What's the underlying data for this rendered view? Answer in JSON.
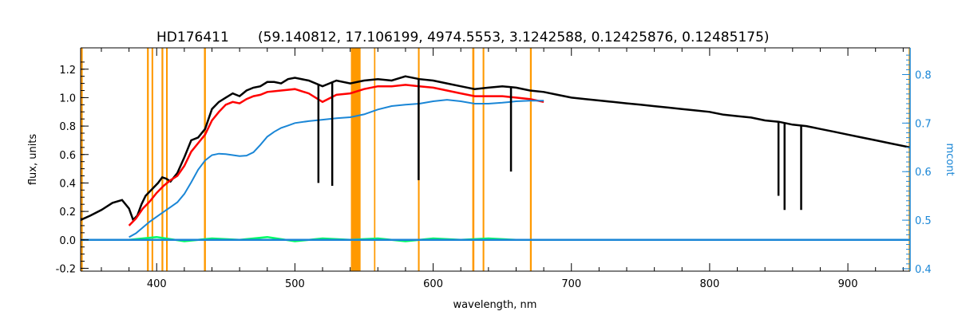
{
  "chart_data": {
    "type": "line",
    "title": "HD176411",
    "subtitle": "(59.140812, 17.106199, 4974.5553, 3.1242588, 0.12425876, 0.12485175)",
    "xlabel": "wavelength, nm",
    "ylabel": "flux, units",
    "ylabel_right": "mcont",
    "xlim": [
      345,
      945
    ],
    "ylim": [
      -0.22,
      1.35
    ],
    "ylim_right": [
      0.395,
      0.855
    ],
    "x_ticks": [
      400,
      500,
      600,
      700,
      800,
      900
    ],
    "x_tick_labels": [
      "400",
      "500",
      "600",
      "700",
      "800",
      "900"
    ],
    "y_ticks": [
      -0.2,
      0.0,
      0.2,
      0.4,
      0.6,
      0.8,
      1.0,
      1.2
    ],
    "y_tick_labels": [
      "-0.2",
      "0.0",
      "0.2",
      "0.4",
      "0.6",
      "0.8",
      "1.0",
      "1.2"
    ],
    "y_right_ticks": [
      0.4,
      0.5,
      0.6,
      0.7,
      0.8
    ],
    "y_right_tick_labels": [
      "0.4",
      "0.5",
      "0.6",
      "0.7",
      "0.8"
    ],
    "masked_regions": [
      [
        345,
        346.5
      ],
      [
        393,
        394.3
      ],
      [
        396.3,
        397.5
      ],
      [
        403.5,
        404.8
      ],
      [
        406.8,
        408
      ],
      [
        434.2,
        435.6
      ],
      [
        540.5,
        547.5
      ],
      [
        557.2,
        558.2
      ],
      [
        589,
        590.2
      ],
      [
        628.3,
        629.8
      ],
      [
        635.8,
        637
      ],
      [
        670,
        671.3
      ],
      [
        944,
        945
      ]
    ],
    "series": [
      {
        "name": "",
        "color": "#000000",
        "x": [
          345,
          352,
          360,
          368,
          375,
          380,
          383,
          386,
          389,
          392,
          395,
          398,
          401,
          404,
          407,
          410,
          415,
          420,
          425,
          430,
          435,
          440,
          445,
          450,
          455,
          460,
          465,
          470,
          475,
          480,
          485,
          490,
          495,
          500,
          510,
          520,
          530,
          540,
          550,
          560,
          570,
          580,
          590,
          600,
          610,
          620,
          630,
          640,
          650,
          660,
          670,
          680,
          690,
          700,
          710,
          720,
          730,
          740,
          750,
          760,
          770,
          780,
          790,
          800,
          810,
          820,
          830,
          840,
          850,
          860,
          870,
          880,
          890,
          900,
          910,
          920,
          930,
          945
        ],
        "y": [
          0.14,
          0.17,
          0.21,
          0.26,
          0.28,
          0.22,
          0.14,
          0.17,
          0.25,
          0.31,
          0.34,
          0.37,
          0.4,
          0.44,
          0.43,
          0.41,
          0.47,
          0.58,
          0.7,
          0.72,
          0.78,
          0.92,
          0.97,
          1.0,
          1.03,
          1.01,
          1.05,
          1.07,
          1.08,
          1.11,
          1.11,
          1.1,
          1.13,
          1.14,
          1.12,
          1.08,
          1.12,
          1.1,
          1.12,
          1.13,
          1.12,
          1.15,
          1.13,
          1.12,
          1.1,
          1.08,
          1.06,
          1.07,
          1.08,
          1.07,
          1.05,
          1.04,
          1.02,
          1.0,
          0.99,
          0.98,
          0.97,
          0.96,
          0.95,
          0.94,
          0.93,
          0.92,
          0.91,
          0.9,
          0.88,
          0.87,
          0.86,
          0.84,
          0.83,
          0.81,
          0.8,
          0.78,
          0.76,
          0.74,
          0.72,
          0.7,
          0.68,
          0.65
        ]
      },
      {
        "name": "",
        "color": "#ff0000",
        "x": [
          380,
          385,
          390,
          395,
          400,
          405,
          410,
          415,
          420,
          425,
          430,
          435,
          440,
          445,
          450,
          455,
          460,
          465,
          470,
          475,
          480,
          490,
          500,
          510,
          520,
          530,
          540,
          550,
          560,
          570,
          580,
          590,
          600,
          610,
          620,
          630,
          640,
          650,
          660,
          670,
          680
        ],
        "y": [
          0.1,
          0.15,
          0.22,
          0.27,
          0.33,
          0.38,
          0.42,
          0.45,
          0.52,
          0.62,
          0.68,
          0.74,
          0.84,
          0.9,
          0.95,
          0.97,
          0.96,
          0.99,
          1.01,
          1.02,
          1.04,
          1.05,
          1.06,
          1.03,
          0.97,
          1.02,
          1.03,
          1.06,
          1.08,
          1.08,
          1.09,
          1.08,
          1.07,
          1.05,
          1.03,
          1.01,
          1.01,
          1.01,
          1.0,
          0.99,
          0.97
        ]
      },
      {
        "name": "mcont",
        "color": "#1a86d6",
        "axis": "right",
        "x": [
          380,
          385,
          390,
          395,
          400,
          405,
          410,
          415,
          420,
          425,
          430,
          435,
          440,
          445,
          450,
          455,
          460,
          465,
          470,
          475,
          480,
          485,
          490,
          495,
          500,
          510,
          520,
          530,
          540,
          550,
          560,
          570,
          580,
          590,
          600,
          610,
          620,
          630,
          640,
          650,
          660,
          670,
          680
        ],
        "y": [
          0.465,
          0.473,
          0.485,
          0.497,
          0.507,
          0.517,
          0.527,
          0.537,
          0.554,
          0.578,
          0.604,
          0.623,
          0.634,
          0.637,
          0.636,
          0.634,
          0.632,
          0.633,
          0.64,
          0.655,
          0.672,
          0.682,
          0.69,
          0.695,
          0.7,
          0.704,
          0.707,
          0.71,
          0.712,
          0.718,
          0.728,
          0.735,
          0.738,
          0.74,
          0.745,
          0.748,
          0.745,
          0.74,
          0.74,
          0.742,
          0.745,
          0.746,
          0.746
        ]
      },
      {
        "name": "",
        "color": "#00ff66",
        "x": [
          380,
          400,
          420,
          440,
          460,
          480,
          500,
          520,
          540,
          560,
          580,
          600,
          620,
          640,
          660,
          680
        ],
        "y": [
          0.0,
          0.02,
          -0.01,
          0.01,
          0.0,
          0.02,
          -0.01,
          0.01,
          0.0,
          0.01,
          -0.01,
          0.01,
          0.0,
          0.01,
          0.0,
          0.0
        ]
      },
      {
        "name": "",
        "color": "#1a86d6",
        "x": [
          345,
          945
        ],
        "y": [
          0.0,
          0.0
        ]
      }
    ],
    "absorption_lines": [
      {
        "x": 517,
        "y": 0.4
      },
      {
        "x": 527,
        "y": 0.38
      },
      {
        "x": 589.5,
        "y": 0.42
      },
      {
        "x": 656.3,
        "y": 0.48
      },
      {
        "x": 849.8,
        "y": 0.31
      },
      {
        "x": 854.2,
        "y": 0.21
      },
      {
        "x": 866.2,
        "y": 0.21
      }
    ]
  }
}
